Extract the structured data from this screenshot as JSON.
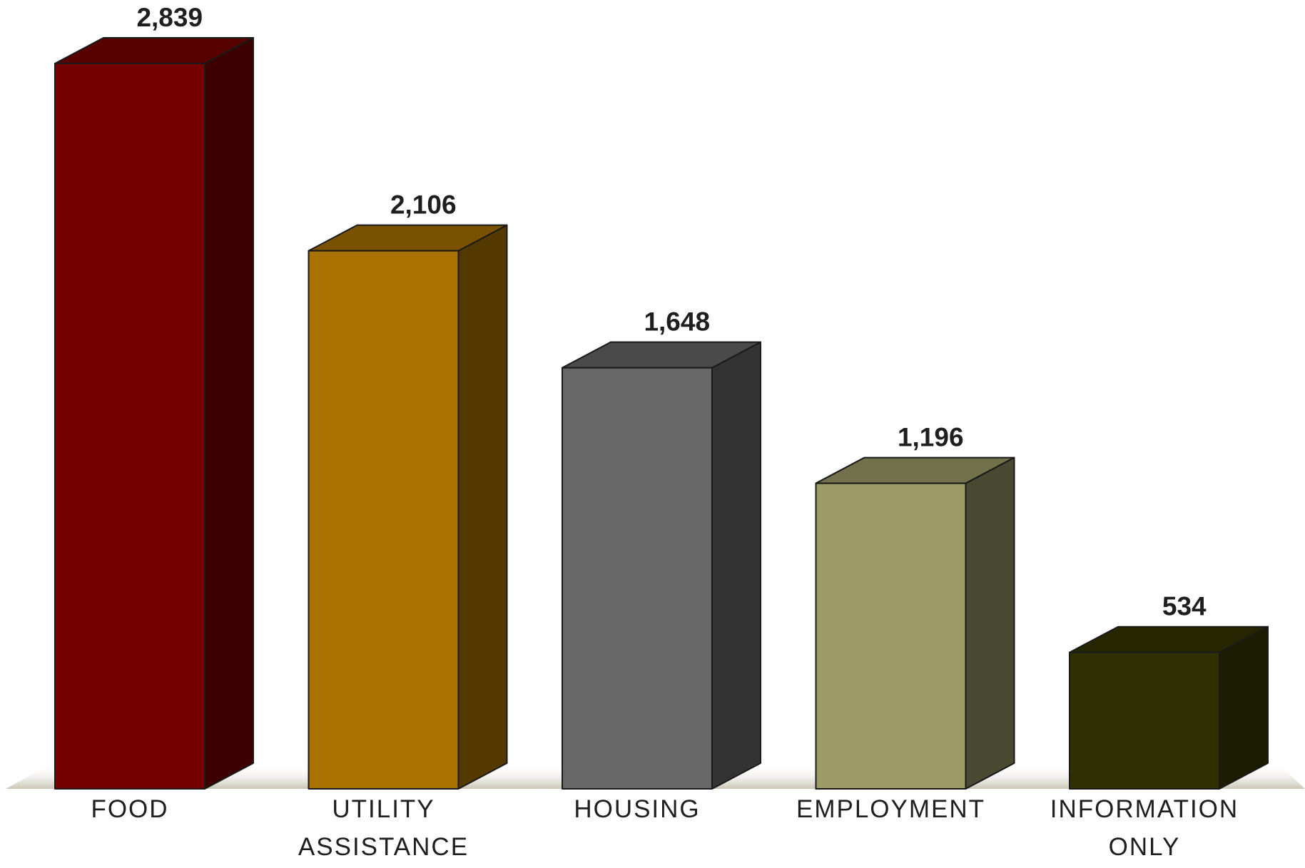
{
  "chart_data": {
    "type": "bar",
    "style": "3d-column",
    "categories": [
      [
        "FOOD"
      ],
      [
        "UTILITY",
        "ASSISTANCE"
      ],
      [
        "HOUSING"
      ],
      [
        "EMPLOYMENT"
      ],
      [
        "INFORMATION",
        "ONLY"
      ]
    ],
    "values": [
      2839,
      2106,
      1648,
      1196,
      534
    ],
    "value_labels": [
      "2,839",
      "2,106",
      "1,648",
      "1,196",
      "534"
    ],
    "colors": [
      {
        "front": "#750000",
        "top": "#560000",
        "side": "#3c0000"
      },
      {
        "front": "#a87100",
        "top": "#7a5100",
        "side": "#533800"
      },
      {
        "front": "#676767",
        "top": "#4a4a4a",
        "side": "#333333"
      },
      {
        "front": "#9c9a65",
        "top": "#72714b",
        "side": "#4a4a33"
      },
      {
        "front": "#313003",
        "top": "#262602",
        "side": "#1c1c02"
      }
    ],
    "floor_color": "#c9c6b5",
    "gridlines": false,
    "legend": "none",
    "ylim": [
      0,
      2839
    ]
  }
}
